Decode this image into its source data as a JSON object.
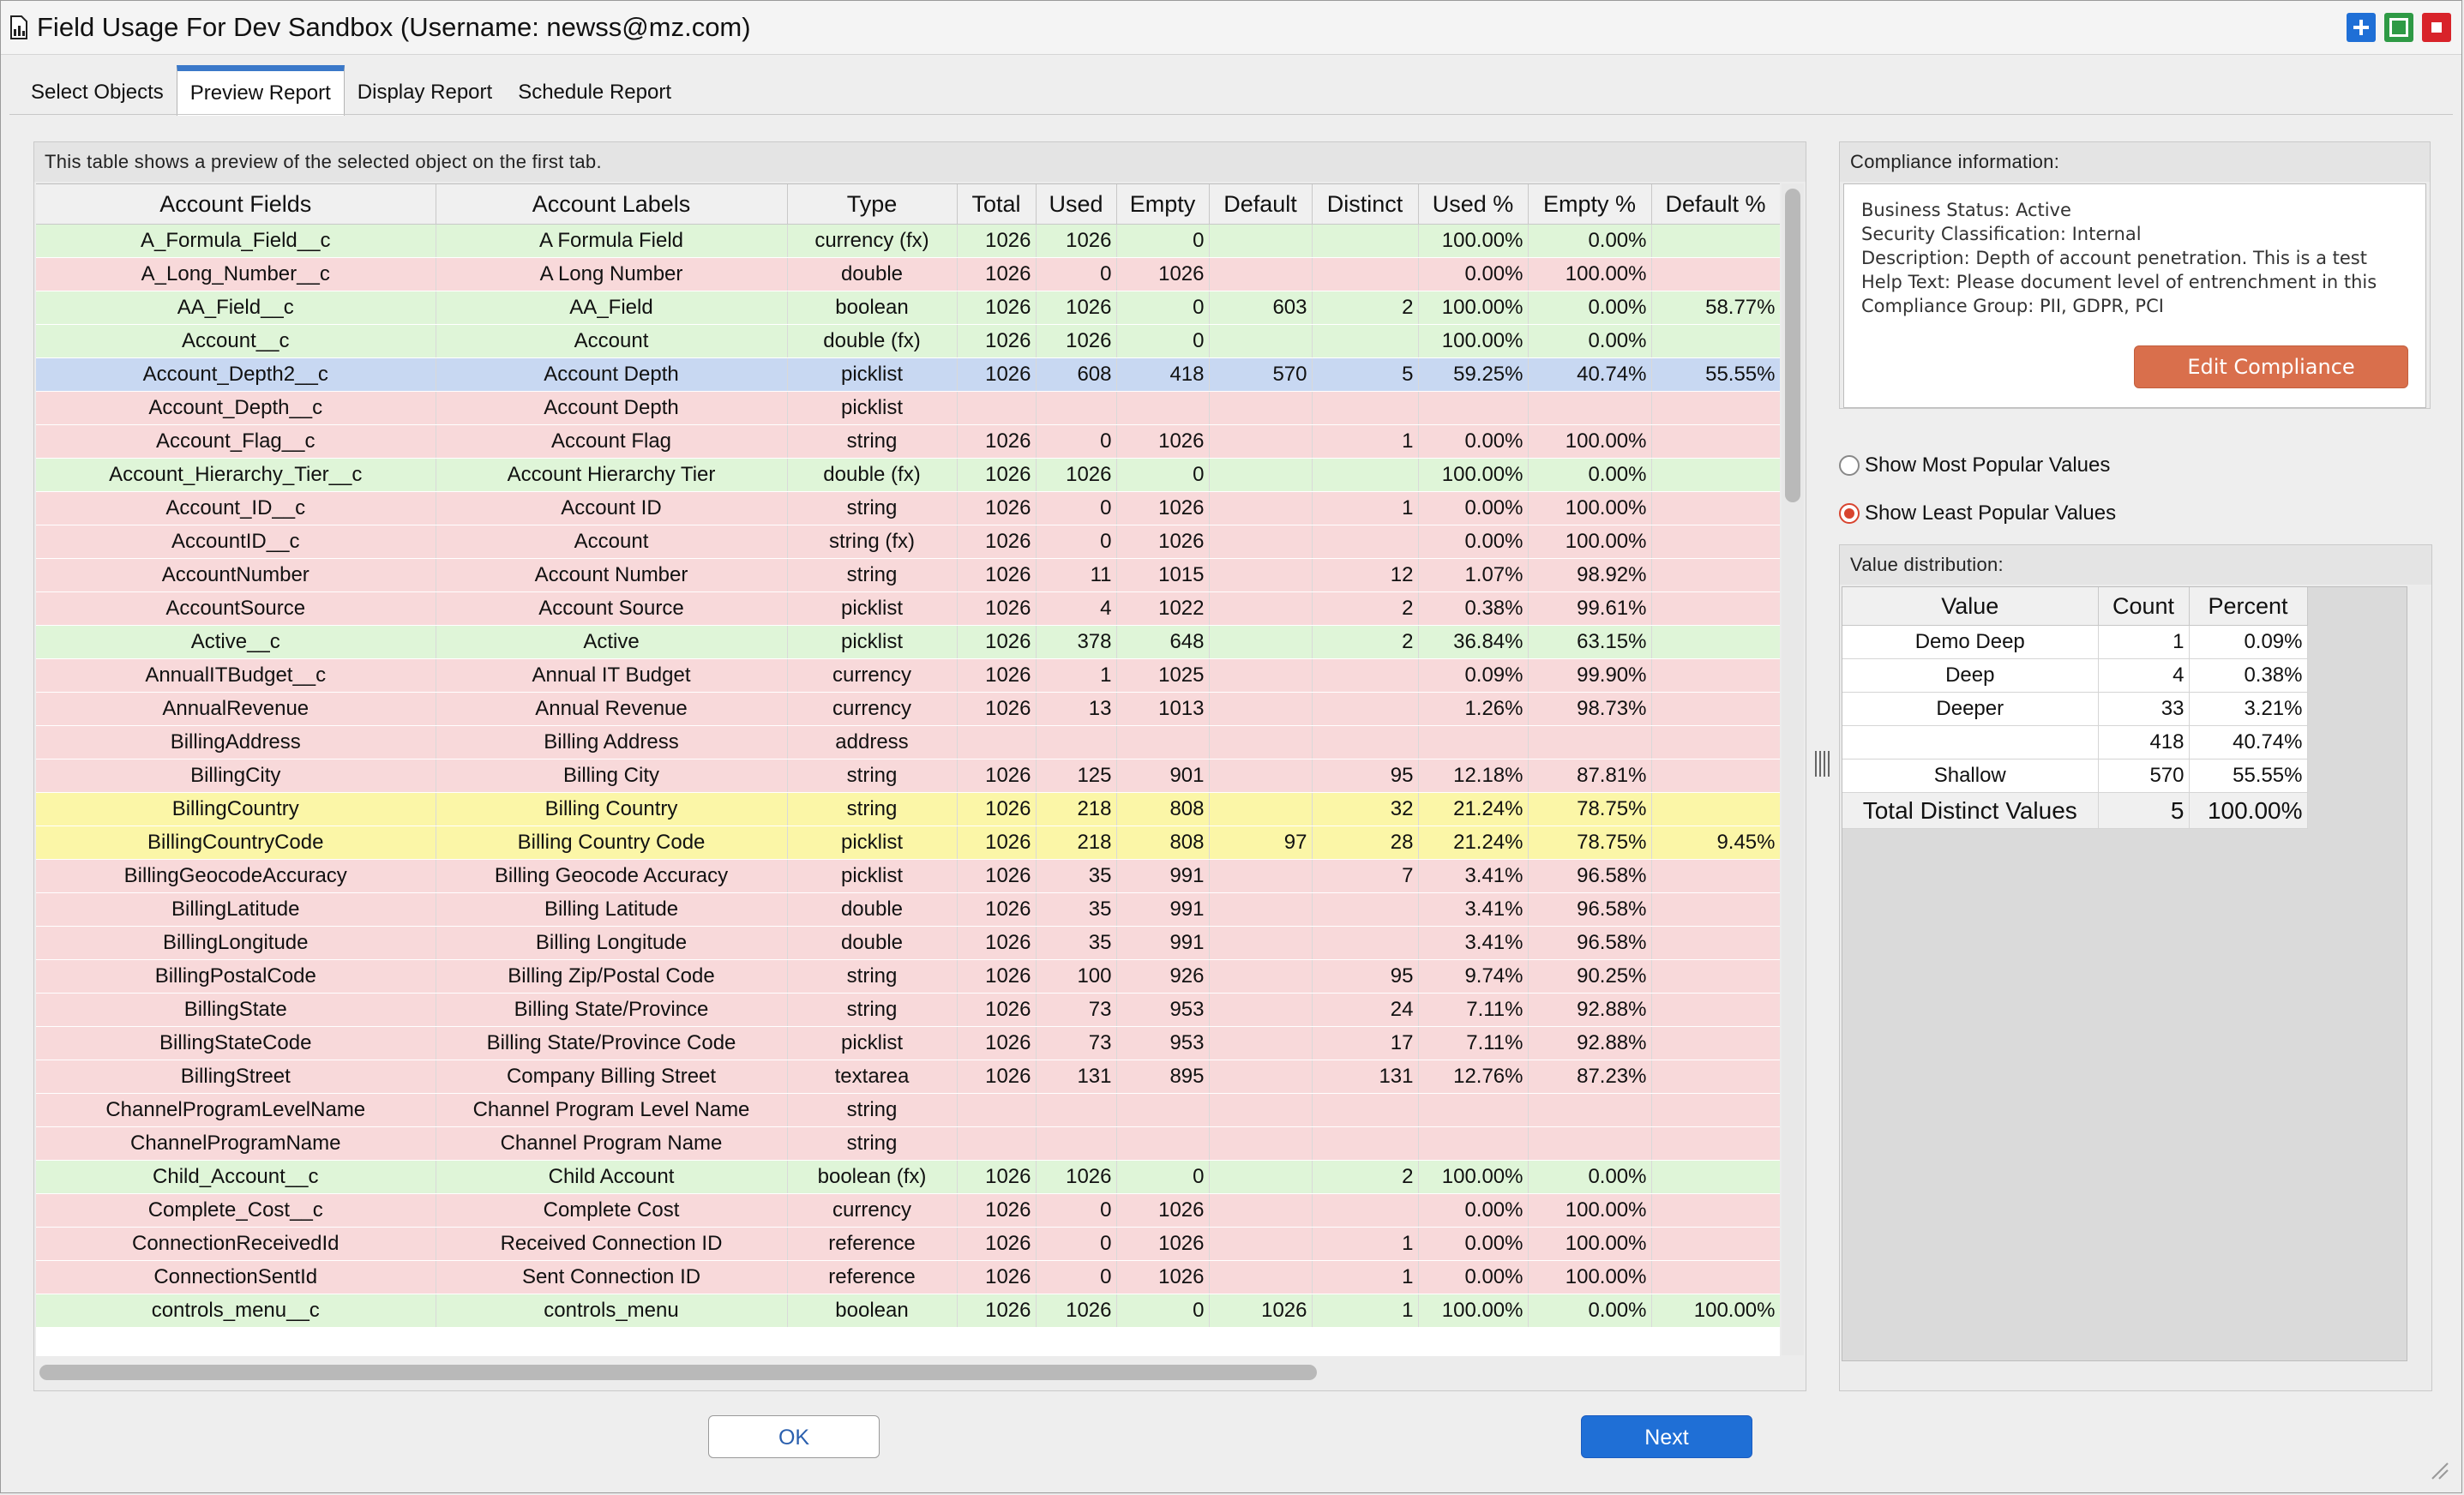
{
  "window": {
    "title": "Field Usage For Dev Sandbox (Username: newss@mz.com)",
    "buttons": [
      "+",
      "maximize",
      "close"
    ]
  },
  "tabs": [
    {
      "label": "Select Objects",
      "active": false
    },
    {
      "label": "Preview Report",
      "active": true
    },
    {
      "label": "Display Report",
      "active": false
    },
    {
      "label": "Schedule Report",
      "active": false
    }
  ],
  "preview": {
    "caption": "This table shows a preview of the selected object on the first tab.",
    "columns": [
      "Account Fields",
      "Account Labels",
      "Type",
      "Total",
      "Used",
      "Empty",
      "Default",
      "Distinct",
      "Used %",
      "Empty %",
      "Default %"
    ],
    "rows": [
      {
        "color": "green",
        "cells": [
          "A_Formula_Field__c",
          "A Formula Field",
          "currency (fx)",
          "1026",
          "1026",
          "0",
          "",
          "",
          "100.00%",
          "0.00%",
          ""
        ]
      },
      {
        "color": "red",
        "cells": [
          "A_Long_Number__c",
          "A Long Number",
          "double",
          "1026",
          "0",
          "1026",
          "",
          "",
          "0.00%",
          "100.00%",
          ""
        ]
      },
      {
        "color": "green",
        "cells": [
          "AA_Field__c",
          "AA_Field",
          "boolean",
          "1026",
          "1026",
          "0",
          "603",
          "2",
          "100.00%",
          "0.00%",
          "58.77%"
        ]
      },
      {
        "color": "green",
        "cells": [
          "Account__c",
          "Account",
          "double (fx)",
          "1026",
          "1026",
          "0",
          "",
          "",
          "100.00%",
          "0.00%",
          ""
        ]
      },
      {
        "color": "blue",
        "cells": [
          "Account_Depth2__c",
          "Account Depth",
          "picklist",
          "1026",
          "608",
          "418",
          "570",
          "5",
          "59.25%",
          "40.74%",
          "55.55%"
        ]
      },
      {
        "color": "red",
        "cells": [
          "Account_Depth__c",
          "Account Depth",
          "picklist",
          "",
          "",
          "",
          "",
          "",
          "",
          "",
          ""
        ]
      },
      {
        "color": "red",
        "cells": [
          "Account_Flag__c",
          "Account Flag",
          "string",
          "1026",
          "0",
          "1026",
          "",
          "1",
          "0.00%",
          "100.00%",
          ""
        ]
      },
      {
        "color": "green",
        "cells": [
          "Account_Hierarchy_Tier__c",
          "Account Hierarchy Tier",
          "double (fx)",
          "1026",
          "1026",
          "0",
          "",
          "",
          "100.00%",
          "0.00%",
          ""
        ]
      },
      {
        "color": "red",
        "cells": [
          "Account_ID__c",
          "Account ID",
          "string",
          "1026",
          "0",
          "1026",
          "",
          "1",
          "0.00%",
          "100.00%",
          ""
        ]
      },
      {
        "color": "red",
        "cells": [
          "AccountID__c",
          "Account",
          "string (fx)",
          "1026",
          "0",
          "1026",
          "",
          "",
          "0.00%",
          "100.00%",
          ""
        ]
      },
      {
        "color": "red",
        "cells": [
          "AccountNumber",
          "Account Number",
          "string",
          "1026",
          "11",
          "1015",
          "",
          "12",
          "1.07%",
          "98.92%",
          ""
        ]
      },
      {
        "color": "red",
        "cells": [
          "AccountSource",
          "Account Source",
          "picklist",
          "1026",
          "4",
          "1022",
          "",
          "2",
          "0.38%",
          "99.61%",
          ""
        ]
      },
      {
        "color": "green",
        "cells": [
          "Active__c",
          "Active",
          "picklist",
          "1026",
          "378",
          "648",
          "",
          "2",
          "36.84%",
          "63.15%",
          ""
        ]
      },
      {
        "color": "red",
        "cells": [
          "AnnualITBudget__c",
          "Annual IT Budget",
          "currency",
          "1026",
          "1",
          "1025",
          "",
          "",
          "0.09%",
          "99.90%",
          ""
        ]
      },
      {
        "color": "red",
        "cells": [
          "AnnualRevenue",
          "Annual Revenue",
          "currency",
          "1026",
          "13",
          "1013",
          "",
          "",
          "1.26%",
          "98.73%",
          ""
        ]
      },
      {
        "color": "red",
        "cells": [
          "BillingAddress",
          "Billing Address",
          "address",
          "",
          "",
          "",
          "",
          "",
          "",
          "",
          ""
        ]
      },
      {
        "color": "red",
        "cells": [
          "BillingCity",
          "Billing City",
          "string",
          "1026",
          "125",
          "901",
          "",
          "95",
          "12.18%",
          "87.81%",
          ""
        ]
      },
      {
        "color": "yellow",
        "cells": [
          "BillingCountry",
          "Billing Country",
          "string",
          "1026",
          "218",
          "808",
          "",
          "32",
          "21.24%",
          "78.75%",
          ""
        ]
      },
      {
        "color": "yellow",
        "cells": [
          "BillingCountryCode",
          "Billing Country Code",
          "picklist",
          "1026",
          "218",
          "808",
          "97",
          "28",
          "21.24%",
          "78.75%",
          "9.45%"
        ]
      },
      {
        "color": "red",
        "cells": [
          "BillingGeocodeAccuracy",
          "Billing Geocode Accuracy",
          "picklist",
          "1026",
          "35",
          "991",
          "",
          "7",
          "3.41%",
          "96.58%",
          ""
        ]
      },
      {
        "color": "red",
        "cells": [
          "BillingLatitude",
          "Billing Latitude",
          "double",
          "1026",
          "35",
          "991",
          "",
          "",
          "3.41%",
          "96.58%",
          ""
        ]
      },
      {
        "color": "red",
        "cells": [
          "BillingLongitude",
          "Billing Longitude",
          "double",
          "1026",
          "35",
          "991",
          "",
          "",
          "3.41%",
          "96.58%",
          ""
        ]
      },
      {
        "color": "red",
        "cells": [
          "BillingPostalCode",
          "Billing Zip/Postal Code",
          "string",
          "1026",
          "100",
          "926",
          "",
          "95",
          "9.74%",
          "90.25%",
          ""
        ]
      },
      {
        "color": "red",
        "cells": [
          "BillingState",
          "Billing State/Province",
          "string",
          "1026",
          "73",
          "953",
          "",
          "24",
          "7.11%",
          "92.88%",
          ""
        ]
      },
      {
        "color": "red",
        "cells": [
          "BillingStateCode",
          "Billing State/Province Code",
          "picklist",
          "1026",
          "73",
          "953",
          "",
          "17",
          "7.11%",
          "92.88%",
          ""
        ]
      },
      {
        "color": "red",
        "cells": [
          "BillingStreet",
          "Company Billing Street",
          "textarea",
          "1026",
          "131",
          "895",
          "",
          "131",
          "12.76%",
          "87.23%",
          ""
        ]
      },
      {
        "color": "red",
        "cells": [
          "ChannelProgramLevelName",
          "Channel Program Level Name",
          "string",
          "",
          "",
          "",
          "",
          "",
          "",
          "",
          ""
        ]
      },
      {
        "color": "red",
        "cells": [
          "ChannelProgramName",
          "Channel Program Name",
          "string",
          "",
          "",
          "",
          "",
          "",
          "",
          "",
          ""
        ]
      },
      {
        "color": "green",
        "cells": [
          "Child_Account__c",
          "Child Account",
          "boolean (fx)",
          "1026",
          "1026",
          "0",
          "",
          "2",
          "100.00%",
          "0.00%",
          ""
        ]
      },
      {
        "color": "red",
        "cells": [
          "Complete_Cost__c",
          "Complete Cost",
          "currency",
          "1026",
          "0",
          "1026",
          "",
          "",
          "0.00%",
          "100.00%",
          ""
        ]
      },
      {
        "color": "red",
        "cells": [
          "ConnectionReceivedId",
          "Received Connection ID",
          "reference",
          "1026",
          "0",
          "1026",
          "",
          "1",
          "0.00%",
          "100.00%",
          ""
        ]
      },
      {
        "color": "red",
        "cells": [
          "ConnectionSentId",
          "Sent Connection ID",
          "reference",
          "1026",
          "0",
          "1026",
          "",
          "1",
          "0.00%",
          "100.00%",
          ""
        ]
      },
      {
        "color": "green",
        "cells": [
          "controls_menu__c",
          "controls_menu",
          "boolean",
          "1026",
          "1026",
          "0",
          "1026",
          "1",
          "100.00%",
          "0.00%",
          "100.00%"
        ]
      }
    ]
  },
  "compliance": {
    "header": "Compliance information:",
    "lines": [
      "Business Status: Active",
      "Security Classification: Internal",
      "Description: Depth of account penetration. This is a test",
      "Help Text: Please document level of entrenchment in this",
      "Compliance Group: PII, GDPR, PCI"
    ],
    "edit_label": "Edit Compliance"
  },
  "options": {
    "most_popular": {
      "label": "Show Most Popular Values",
      "checked": false
    },
    "least_popular": {
      "label": "Show Least Popular Values",
      "checked": true
    }
  },
  "distribution": {
    "header": "Value distribution:",
    "columns": [
      "Value",
      "Count",
      "Percent"
    ],
    "rows": [
      [
        "Demo Deep",
        "1",
        "0.09%"
      ],
      [
        "Deep",
        "4",
        "0.38%"
      ],
      [
        "Deeper",
        "33",
        "3.21%"
      ],
      [
        "",
        "418",
        "40.74%"
      ],
      [
        "Shallow",
        "570",
        "55.55%"
      ]
    ],
    "total": [
      "Total Distinct Values",
      "5",
      "100.00%"
    ]
  },
  "footer": {
    "ok_label": "OK",
    "next_label": "Next"
  },
  "colors": {
    "green_row": "#dff5d8",
    "red_row": "#f8d9da",
    "yellow_row": "#fbf6a7",
    "selected_row": "#c8d8f2",
    "primary": "#1f6fd6",
    "edit_button": "#d96f4c"
  }
}
